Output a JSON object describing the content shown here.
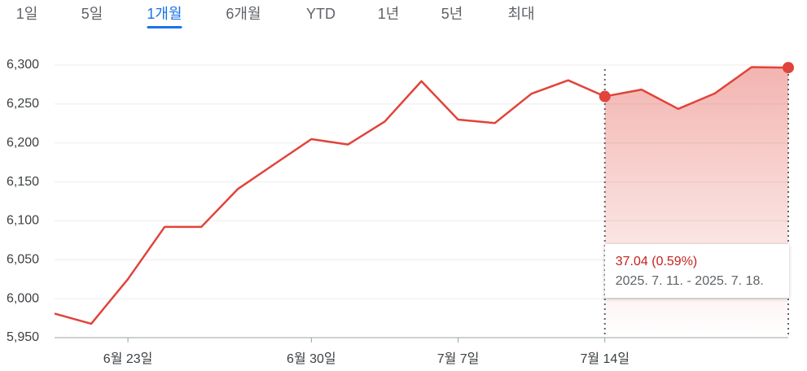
{
  "tabs": [
    "1일",
    "5일",
    "1개월",
    "6개월",
    "YTD",
    "1년",
    "5년",
    "최대"
  ],
  "active_tab": 2,
  "chart_data": {
    "type": "line",
    "categories": [
      null,
      null,
      "6월 23일",
      null,
      null,
      null,
      null,
      "6월 30일",
      null,
      null,
      null,
      "7월 7일",
      null,
      null,
      null,
      "7월 14일",
      null,
      null,
      null,
      null,
      null
    ],
    "values": [
      5980.87,
      5967.84,
      6025.17,
      6092.18,
      6092.16,
      6141.02,
      6173.07,
      6204.95,
      6198.01,
      6227.42,
      6279.35,
      6229.98,
      6225.52,
      6263.26,
      6280.46,
      6259.75,
      6268.56,
      6243.76,
      6263.7,
      6297.36,
      6296.79
    ],
    "color": "#e0443a",
    "ylim": [
      5950,
      6300
    ],
    "yticks": [
      {
        "value": 5950,
        "label": "5,950"
      },
      {
        "value": 6000,
        "label": "6,000"
      },
      {
        "value": 6050,
        "label": "6,050"
      },
      {
        "value": 6100,
        "label": "6,100"
      },
      {
        "value": 6150,
        "label": "6,150"
      },
      {
        "value": 6200,
        "label": "6,200"
      },
      {
        "value": 6250,
        "label": "6,250"
      },
      {
        "value": 6300,
        "label": "6,300"
      }
    ],
    "grid": true,
    "highlight_range": [
      15,
      20
    ],
    "tooltip": {
      "change": "37.04 (0.59%)",
      "range": "2025. 7. 11. - 2025. 7. 18."
    }
  }
}
